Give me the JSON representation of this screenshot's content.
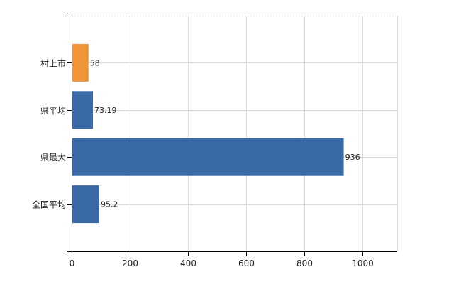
{
  "chart_data": {
    "type": "bar",
    "orientation": "horizontal",
    "categories": [
      "村上市",
      "県平均",
      "県最大",
      "全国平均"
    ],
    "values": [
      58,
      73.19,
      936,
      95.2
    ],
    "value_labels": [
      "58",
      "73.19",
      "936",
      "95.2"
    ],
    "bar_colors": [
      "#f0953a",
      "#3a6aa6",
      "#3a6aa6",
      "#3a6aa6"
    ],
    "xlim": [
      0,
      1120
    ],
    "xticks": [
      0,
      200,
      400,
      600,
      800,
      1000
    ],
    "xtick_labels": [
      "0",
      "200",
      "400",
      "600",
      "800",
      "1000"
    ],
    "grid": true,
    "legend": "none"
  }
}
